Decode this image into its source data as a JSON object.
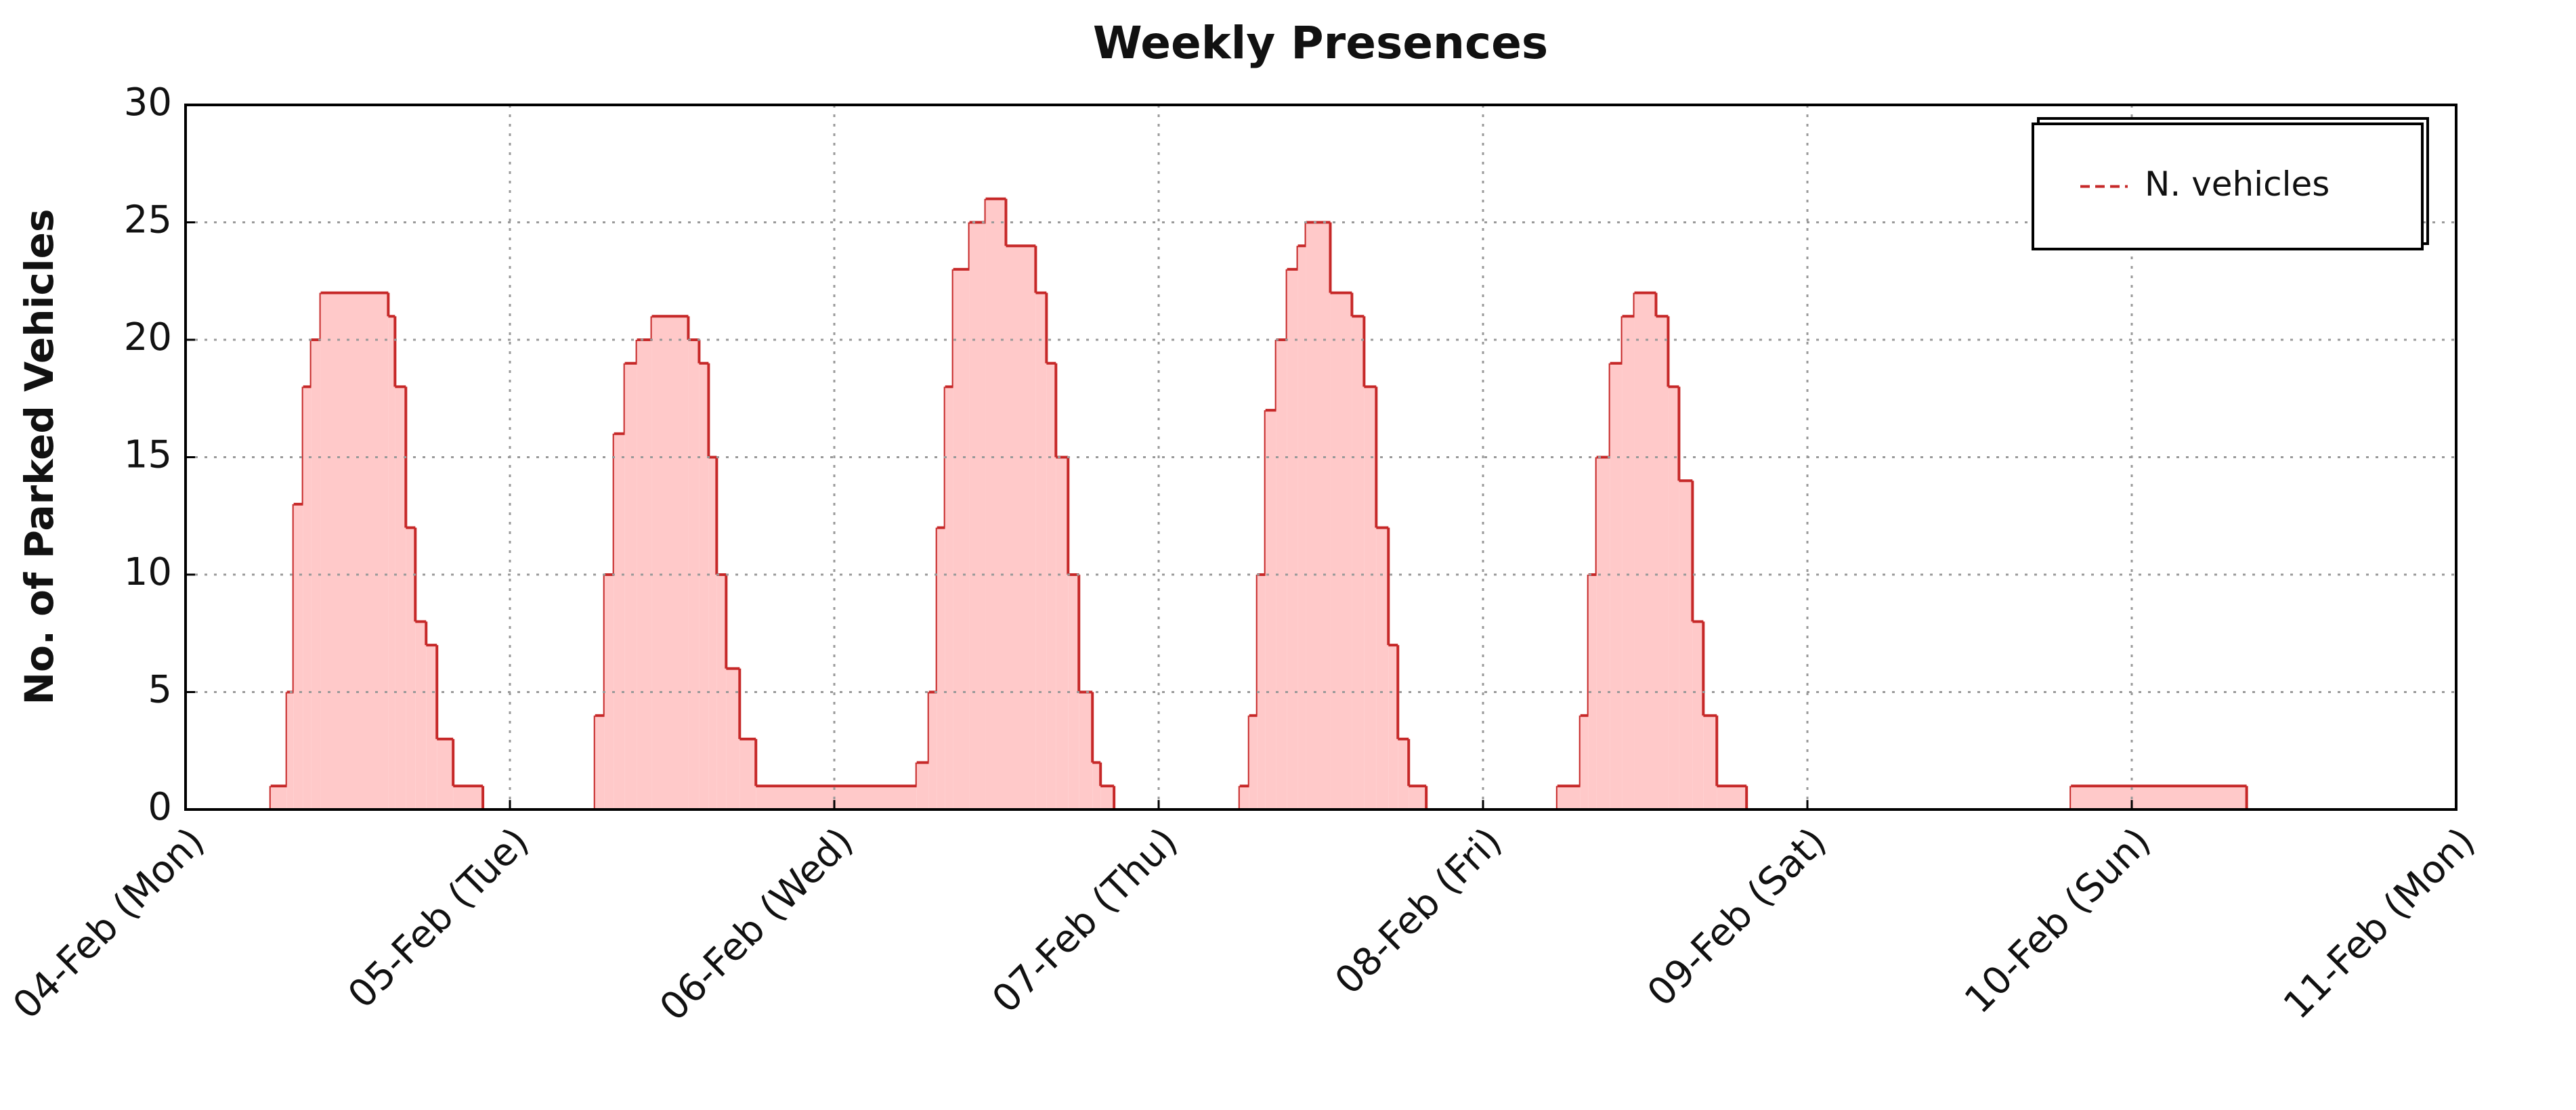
{
  "chart_data": {
    "type": "step-area",
    "title": "Weekly Presences",
    "ylabel": "No. of Parked Vehicles",
    "xlim": [
      0,
      168
    ],
    "xticks": [
      {
        "value": 0,
        "label": "04-Feb (Mon)"
      },
      {
        "value": 24,
        "label": "05-Feb (Tue)"
      },
      {
        "value": 48,
        "label": "06-Feb (Wed)"
      },
      {
        "value": 72,
        "label": "07-Feb (Thu)"
      },
      {
        "value": 96,
        "label": "08-Feb (Fri)"
      },
      {
        "value": 120,
        "label": "09-Feb (Sat)"
      },
      {
        "value": 144,
        "label": "10-Feb (Sun)"
      },
      {
        "value": 168,
        "label": "11-Feb (Mon)"
      }
    ],
    "ylim": [
      0,
      30
    ],
    "yticks": [
      0,
      5,
      10,
      15,
      20,
      25,
      30
    ],
    "grid": true,
    "legend": "upper right",
    "series": [
      {
        "name": "N. vehicles",
        "color": "#c62828",
        "fill": "#ffc9c9",
        "x": [
          0,
          6.3,
          7.5,
          8,
          8.7,
          9.3,
          10,
          15,
          15.5,
          16.3,
          17,
          17.8,
          18.6,
          19.8,
          22,
          30.3,
          31,
          31.7,
          32.5,
          33.4,
          34.5,
          37.2,
          38,
          38.7,
          39.3,
          40,
          41,
          42.2,
          54.1,
          55,
          55.6,
          56.2,
          56.8,
          58,
          59.2,
          60.7,
          62.9,
          63.7,
          64.4,
          65.3,
          66.1,
          67.1,
          67.7,
          68.7,
          78,
          78.7,
          79.3,
          79.9,
          80.7,
          81.5,
          82.3,
          82.9,
          84.7,
          86.3,
          87.2,
          88.1,
          89,
          89.7,
          90.5,
          91.8,
          101.5,
          103.2,
          103.8,
          104.4,
          105.4,
          106.3,
          107.2,
          108.8,
          109.7,
          110.5,
          111.5,
          112.3,
          113.3,
          115.5,
          139.5,
          152.5
        ],
        "values": [
          0,
          1,
          5,
          13,
          18,
          20,
          22,
          21,
          18,
          12,
          8,
          7,
          3,
          1,
          0,
          4,
          10,
          16,
          19,
          20,
          21,
          20,
          19,
          15,
          10,
          6,
          3,
          1,
          2,
          5,
          12,
          18,
          23,
          25,
          26,
          24,
          22,
          19,
          15,
          10,
          5,
          2,
          1,
          0,
          1,
          4,
          10,
          17,
          20,
          23,
          24,
          25,
          22,
          21,
          18,
          12,
          7,
          3,
          1,
          0,
          1,
          4,
          10,
          15,
          19,
          21,
          22,
          21,
          18,
          14,
          8,
          4,
          1,
          0,
          1,
          0
        ]
      }
    ]
  }
}
